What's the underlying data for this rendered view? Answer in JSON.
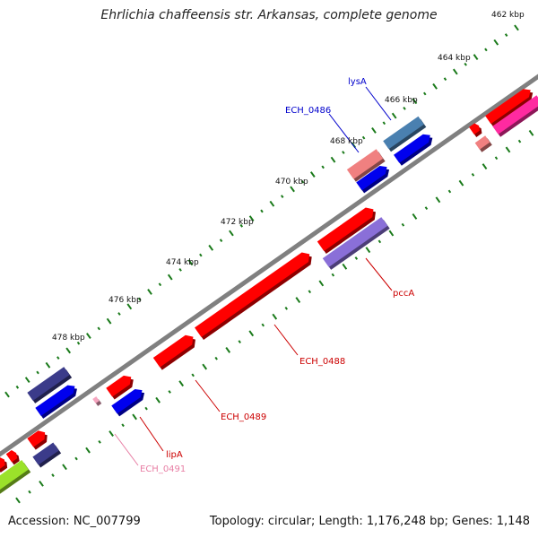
{
  "title": "Ehrlichia chaffeensis str. Arkansas, complete genome",
  "accession_text": "Accession: NC_007799",
  "topology_text": "Topology: circular; Length: 1,176,248 bp; Genes: 1,148",
  "tick_labels": [
    "462 kbp",
    "464 kbp",
    "466 kbp",
    "468 kbp",
    "470 kbp",
    "472 kbp",
    "474 kbp",
    "476 kbp",
    "478 kbp"
  ],
  "genes": [
    {
      "name": "lysA",
      "color": "#0000cc"
    },
    {
      "name": "ECH_0486",
      "color": "#0000cc"
    },
    {
      "name": "pccA",
      "color": "#cc0000"
    },
    {
      "name": "ECH_0488",
      "color": "#cc0000"
    },
    {
      "name": "ECH_0489",
      "color": "#cc0000"
    },
    {
      "name": "lipA",
      "color": "#cc0000"
    },
    {
      "name": "ECH_0491",
      "color": "#e87fa5"
    }
  ],
  "colors": {
    "backbone": "#808080",
    "tick": "#1a7a1a",
    "red": "#ff0000",
    "blue": "#0000ee",
    "steel_blue": "#4a80b0",
    "dark_slate": "#3b3b8a",
    "light_red": "#f08080",
    "medium_purple": "#8a6fd8",
    "pink": "#ff2aa0",
    "light_pink": "#f6a6c0",
    "lime": "#9be22a"
  }
}
